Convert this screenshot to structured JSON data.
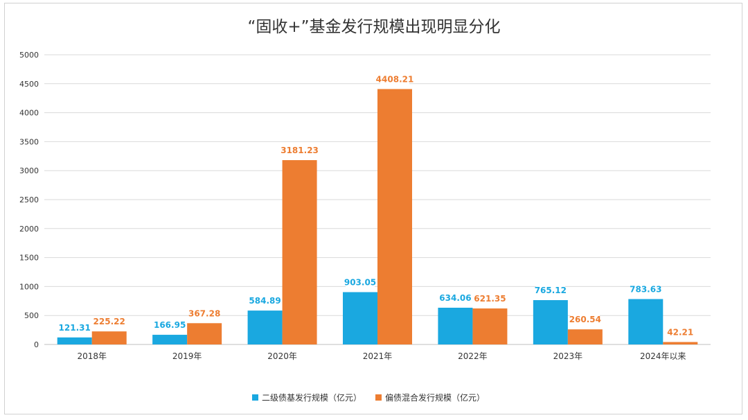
{
  "chart_data": {
    "type": "bar",
    "title": "“固收+”基金发行规模出现明显分化",
    "categories": [
      "2018年",
      "2019年",
      "2020年",
      "2021年",
      "2022年",
      "2023年",
      "2024年以来"
    ],
    "series": [
      {
        "name": "二级债基发行规模（亿元）",
        "color": "#1aa8e0",
        "values": [
          121.31,
          166.95,
          584.89,
          903.05,
          634.06,
          765.12,
          783.63
        ],
        "labels": [
          "121.31",
          "166.95",
          "584.89",
          "903.05",
          "634.06",
          "765.12",
          "783.63"
        ]
      },
      {
        "name": "偏债混合发行规模（亿元）",
        "color": "#ed7d31",
        "values": [
          225.22,
          367.28,
          3181.23,
          4408.21,
          621.35,
          260.54,
          42.21
        ],
        "labels": [
          "225.22",
          "367.28",
          "3181.23",
          "4408.21",
          "621.35",
          "260.54",
          "42.21"
        ]
      }
    ],
    "ylim": [
      0,
      5000
    ],
    "yticks": [
      0,
      500,
      1000,
      1500,
      2000,
      2500,
      3000,
      3500,
      4000,
      4500,
      5000
    ],
    "ytick_labels": [
      "0",
      "500",
      "1000",
      "1500",
      "2000",
      "2500",
      "3000",
      "3500",
      "4000",
      "4500",
      "5000"
    ],
    "grid": true,
    "legend": "bottom"
  }
}
